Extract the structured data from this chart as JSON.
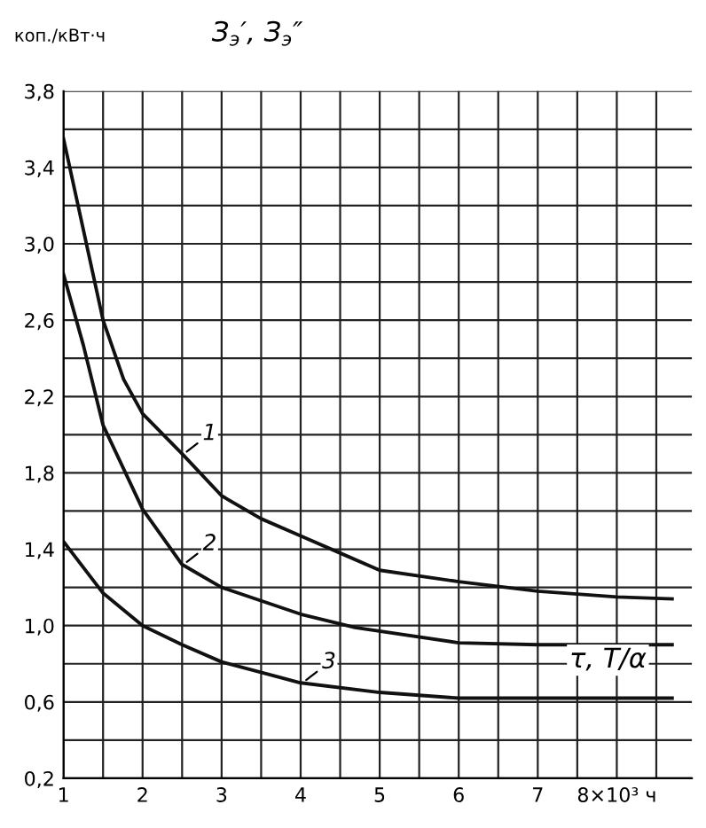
{
  "chart_data": {
    "type": "line",
    "title": "З$_{э}$′, З$_{э}$″",
    "ylabel": "коп./кВт·ч",
    "xlim": [
      1,
      8.95
    ],
    "ylim": [
      0.2,
      3.8
    ],
    "xticks": [
      1,
      {
        "value": 1.5,
        "label": null
      },
      2,
      {
        "value": 2.5,
        "label": null
      },
      3,
      {
        "value": 3.5,
        "label": null
      },
      4,
      {
        "value": 4.5,
        "label": null
      },
      5,
      {
        "value": 5.5,
        "label": null
      },
      6,
      {
        "value": 6.5,
        "label": null
      },
      7,
      {
        "value": 7.5,
        "label": null
      },
      {
        "value": 8,
        "label": "8×10³ ч"
      },
      {
        "value": 8.5,
        "label": null
      }
    ],
    "yticks": [
      {
        "value": 0.2,
        "label": "0,2"
      },
      {
        "value": 0.4,
        "label": null
      },
      {
        "value": 0.6,
        "label": "0,6"
      },
      {
        "value": 0.8,
        "label": null
      },
      {
        "value": 1.0,
        "label": "1,0"
      },
      {
        "value": 1.2,
        "label": null
      },
      {
        "value": 1.4,
        "label": "1,4"
      },
      {
        "value": 1.6,
        "label": null
      },
      {
        "value": 1.8,
        "label": "1,8"
      },
      {
        "value": 2.0,
        "label": null
      },
      {
        "value": 2.2,
        "label": "2,2"
      },
      {
        "value": 2.4,
        "label": null
      },
      {
        "value": 2.6,
        "label": "2,6"
      },
      {
        "value": 2.8,
        "label": null
      },
      {
        "value": 3.0,
        "label": "3,0"
      },
      {
        "value": 3.2,
        "label": null
      },
      {
        "value": 3.4,
        "label": "3,4"
      },
      {
        "value": 3.6,
        "label": null
      },
      {
        "value": 3.8,
        "label": "3,8"
      }
    ],
    "grid": true,
    "marker": "none",
    "line_style": "solid",
    "series": [
      {
        "color": "#111111",
        "x": [
          1,
          1.5,
          1.76,
          2,
          2.5,
          3,
          3.5,
          4,
          4.5,
          5,
          6,
          7,
          8,
          8.7
        ],
        "values": [
          3.55,
          2.6,
          2.29,
          2.11,
          1.9,
          1.68,
          1.56,
          1.47,
          1.38,
          1.29,
          1.23,
          1.18,
          1.15,
          1.14
        ]
      },
      {
        "color": "#111111",
        "x": [
          1,
          1.25,
          1.5,
          2,
          2.5,
          3,
          4,
          4.69,
          6,
          7,
          8.7
        ],
        "values": [
          2.84,
          2.47,
          2.05,
          1.61,
          1.32,
          1.2,
          1.06,
          0.99,
          0.91,
          0.9,
          0.9
        ]
      },
      {
        "color": "#111111",
        "x": [
          1,
          1.5,
          2,
          2.5,
          3,
          4,
          5,
          6,
          8.7
        ],
        "values": [
          1.44,
          1.17,
          1.0,
          0.9,
          0.81,
          0.7,
          0.65,
          0.62,
          0.62
        ]
      }
    ],
    "annotations": [
      "1",
      "2",
      "3",
      "τ, T/α"
    ]
  }
}
